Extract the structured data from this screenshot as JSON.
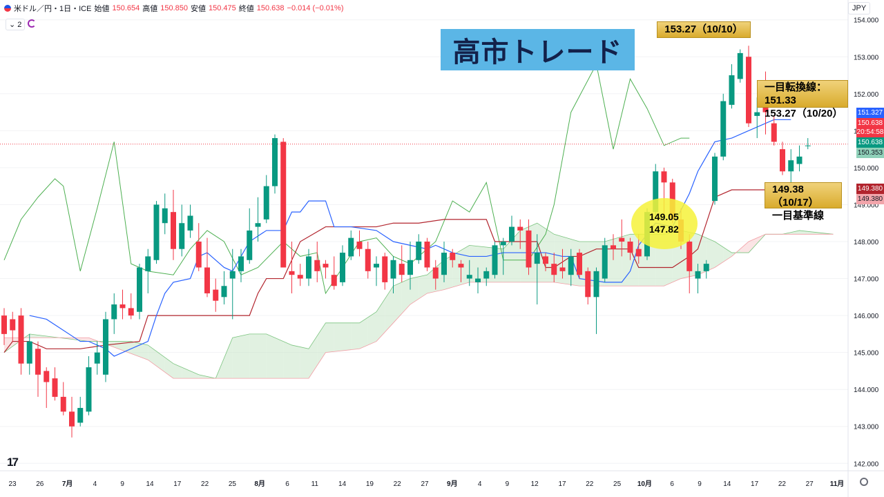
{
  "header": {
    "symbol": "米ドル／円・1日・ICE",
    "open_label": "始値",
    "open": "150.654",
    "high_label": "高値",
    "high": "150.850",
    "low_label": "安値",
    "low": "150.475",
    "close_label": "終値",
    "close": "150.638",
    "change": "−0.014 (−0.01%)",
    "indicator_count": "2",
    "currency": "JPY"
  },
  "annotations": {
    "title": "高市トレード",
    "peak": "153.27（10/10）",
    "tenkan_line1": "一目転換線：151.33",
    "tenkan_line2": "153.27（10/20）",
    "kijun_line1": "149.38（10/17）",
    "kijun_line2": "一目基準線",
    "circle_1": "149.05",
    "circle_2": "147.82"
  },
  "badges": {
    "tenkan": "151.327",
    "last": "150.638",
    "countdown": "20:54:58",
    "close": "150.638",
    "span": "150.353",
    "kijun1": "149.380",
    "kijun2": "149.380"
  },
  "colors": {
    "up": "#089981",
    "down": "#f23645",
    "tenkan": "#2962ff",
    "kijun": "#b2242d",
    "chikou": "#4caf50",
    "cloud_bull": "#c8e6c9",
    "cloud_bear": "#f8cdd0"
  },
  "chart_data": {
    "type": "candlestick",
    "y_ticks": [
      "154.000",
      "153.000",
      "152.000",
      "151.000",
      "150.000",
      "149.000",
      "148.000",
      "147.000",
      "146.000",
      "145.000",
      "144.000",
      "143.000",
      "142.000"
    ],
    "ylim": [
      141.8,
      154.2
    ],
    "x_ticks": [
      "23",
      "26",
      "7月",
      "4",
      "9",
      "14",
      "17",
      "22",
      "25",
      "8月",
      "6",
      "11",
      "14",
      "19",
      "22",
      "27",
      "9月",
      "4",
      "9",
      "12",
      "17",
      "22",
      "25",
      "10月",
      "6",
      "9",
      "14",
      "17",
      "22",
      "27",
      "11月"
    ],
    "candles": [
      [
        146.0,
        146.2,
        145.2,
        145.5
      ],
      [
        145.9,
        146.1,
        145.3,
        145.6
      ],
      [
        146.0,
        146.2,
        144.4,
        144.7
      ],
      [
        144.7,
        145.5,
        144.4,
        145.3
      ],
      [
        145.1,
        145.3,
        143.8,
        144.4
      ],
      [
        144.5,
        144.6,
        143.5,
        144.2
      ],
      [
        144.3,
        144.6,
        143.7,
        143.8
      ],
      [
        143.8,
        144.2,
        143.3,
        143.4
      ],
      [
        143.4,
        143.8,
        142.7,
        143.0
      ],
      [
        143.1,
        143.8,
        143.0,
        143.5
      ],
      [
        143.4,
        144.9,
        143.3,
        144.6
      ],
      [
        144.7,
        145.3,
        144.4,
        145.0
      ],
      [
        144.4,
        146.1,
        144.2,
        145.9
      ],
      [
        145.9,
        146.6,
        145.5,
        146.3
      ],
      [
        146.3,
        146.7,
        145.9,
        146.2
      ],
      [
        146.2,
        146.6,
        145.9,
        146.0
      ],
      [
        146.1,
        147.4,
        145.9,
        147.3
      ],
      [
        147.2,
        147.8,
        146.6,
        147.6
      ],
      [
        147.5,
        149.1,
        147.4,
        149.0
      ],
      [
        148.5,
        149.3,
        148.2,
        148.9
      ],
      [
        148.8,
        149.4,
        147.5,
        147.8
      ],
      [
        147.8,
        149.0,
        147.6,
        148.5
      ],
      [
        148.3,
        149.0,
        148.1,
        148.7
      ],
      [
        148.0,
        148.5,
        147.2,
        147.3
      ],
      [
        147.3,
        148.1,
        146.5,
        146.6
      ],
      [
        146.7,
        147.0,
        146.1,
        146.4
      ],
      [
        146.5,
        147.2,
        146.3,
        146.8
      ],
      [
        147.0,
        147.8,
        145.9,
        147.2
      ],
      [
        147.2,
        147.8,
        146.9,
        147.6
      ],
      [
        147.5,
        148.9,
        147.4,
        148.3
      ],
      [
        148.4,
        149.2,
        148.0,
        148.5
      ],
      [
        148.6,
        149.8,
        148.5,
        149.5
      ],
      [
        149.5,
        150.9,
        149.3,
        150.8
      ],
      [
        150.7,
        150.8,
        147.4,
        147.3
      ],
      [
        147.2,
        148.0,
        146.6,
        147.1
      ],
      [
        147.1,
        147.4,
        146.8,
        147.0
      ],
      [
        147.0,
        147.8,
        146.8,
        147.6
      ],
      [
        147.5,
        148.0,
        146.9,
        147.2
      ],
      [
        147.4,
        147.5,
        147.0,
        147.3
      ],
      [
        147.1,
        147.6,
        146.7,
        146.8
      ],
      [
        146.9,
        147.9,
        146.8,
        147.7
      ],
      [
        147.6,
        148.3,
        147.5,
        148.1
      ],
      [
        148.0,
        148.3,
        147.6,
        147.8
      ],
      [
        147.8,
        148.0,
        147.0,
        147.2
      ],
      [
        147.3,
        147.6,
        146.8,
        147.4
      ],
      [
        147.6,
        147.7,
        146.7,
        146.9
      ],
      [
        147.0,
        147.6,
        146.6,
        147.5
      ],
      [
        147.4,
        147.9,
        146.9,
        147.1
      ],
      [
        147.1,
        148.0,
        146.7,
        147.5
      ],
      [
        147.5,
        148.2,
        147.4,
        148.0
      ],
      [
        148.0,
        148.1,
        147.2,
        147.3
      ],
      [
        147.3,
        147.5,
        146.7,
        147.0
      ],
      [
        147.1,
        148.0,
        146.9,
        147.7
      ],
      [
        147.7,
        147.8,
        147.3,
        147.5
      ],
      [
        147.4,
        147.5,
        146.9,
        147.3
      ],
      [
        147.0,
        147.5,
        146.8,
        147.1
      ],
      [
        146.9,
        147.3,
        146.6,
        147.0
      ],
      [
        147.0,
        147.3,
        146.8,
        147.2
      ],
      [
        147.1,
        148.0,
        147.0,
        147.9
      ],
      [
        147.9,
        148.1,
        147.1,
        148.0
      ],
      [
        148.0,
        148.7,
        147.9,
        148.4
      ],
      [
        148.4,
        148.6,
        147.8,
        148.3
      ],
      [
        148.3,
        148.6,
        147.1,
        147.3
      ],
      [
        147.4,
        148.2,
        146.3,
        147.7
      ],
      [
        147.6,
        147.7,
        147.2,
        147.4
      ],
      [
        147.4,
        147.7,
        146.9,
        147.1
      ],
      [
        147.3,
        147.8,
        147.0,
        147.2
      ],
      [
        147.1,
        147.8,
        146.8,
        147.6
      ],
      [
        147.7,
        147.8,
        147.0,
        147.1
      ],
      [
        147.2,
        147.3,
        146.3,
        146.5
      ],
      [
        146.5,
        147.3,
        145.5,
        147.2
      ],
      [
        147.0,
        148.1,
        146.9,
        147.9
      ],
      [
        147.9,
        148.2,
        147.5,
        147.8
      ],
      [
        148.1,
        148.6,
        147.6,
        148.0
      ],
      [
        148.0,
        148.1,
        147.5,
        147.7
      ],
      [
        147.8,
        148.2,
        147.4,
        147.6
      ],
      [
        147.6,
        148.9,
        147.5,
        148.8
      ],
      [
        148.8,
        150.1,
        148.6,
        149.9
      ],
      [
        149.9,
        150.0,
        148.7,
        149.6
      ],
      [
        149.6,
        149.7,
        148.5,
        148.6
      ],
      [
        148.6,
        148.9,
        147.8,
        148.0
      ],
      [
        148.0,
        148.2,
        146.6,
        147.2
      ],
      [
        147.0,
        147.4,
        146.6,
        147.2
      ],
      [
        147.2,
        147.5,
        147.0,
        147.4
      ],
      [
        149.1,
        150.4,
        149.0,
        150.3
      ],
      [
        150.3,
        152.0,
        150.2,
        151.8
      ],
      [
        151.7,
        152.8,
        151.6,
        152.5
      ],
      [
        152.4,
        153.2,
        152.3,
        153.1
      ],
      [
        153.0,
        153.3,
        151.1,
        151.2
      ],
      [
        151.4,
        151.9,
        150.8,
        151.5
      ],
      [
        152.1,
        152.6,
        150.9,
        151.5
      ],
      [
        151.2,
        151.4,
        150.6,
        150.7
      ],
      [
        150.5,
        150.7,
        149.8,
        149.9
      ],
      [
        149.9,
        150.5,
        149.4,
        150.2
      ],
      [
        150.1,
        150.6,
        149.9,
        150.3
      ],
      [
        150.6,
        150.8,
        150.5,
        150.6
      ]
    ],
    "tenkan": [
      [
        3,
        146.0
      ],
      [
        5,
        145.9
      ],
      [
        9,
        145.3
      ],
      [
        10,
        145.3
      ],
      [
        12,
        145.1
      ],
      [
        13,
        144.9
      ],
      [
        14,
        145.0
      ],
      [
        17,
        145.3
      ],
      [
        18,
        146.0
      ],
      [
        19,
        146.6
      ],
      [
        20,
        146.9
      ],
      [
        22,
        147.0
      ],
      [
        23,
        147.6
      ],
      [
        24,
        147.7
      ],
      [
        26,
        147.3
      ],
      [
        27,
        147.2
      ],
      [
        29,
        148.0
      ],
      [
        31,
        148.3
      ],
      [
        33,
        148.3
      ],
      [
        34,
        148.8
      ],
      [
        35,
        148.8
      ],
      [
        36,
        149.1
      ],
      [
        38,
        149.1
      ],
      [
        39,
        148.4
      ],
      [
        41,
        148.4
      ],
      [
        44,
        148.3
      ],
      [
        46,
        148.0
      ],
      [
        48,
        147.9
      ],
      [
        50,
        147.8
      ],
      [
        51,
        147.9
      ],
      [
        53,
        147.7
      ],
      [
        55,
        147.6
      ],
      [
        57,
        147.6
      ],
      [
        59,
        147.7
      ],
      [
        60,
        147.7
      ],
      [
        62,
        147.7
      ],
      [
        64,
        147.7
      ],
      [
        66,
        147.6
      ],
      [
        67,
        147.6
      ],
      [
        68,
        147.0
      ],
      [
        71,
        146.9
      ],
      [
        73,
        146.9
      ],
      [
        74,
        147.2
      ],
      [
        75,
        147.9
      ],
      [
        77,
        148.5
      ],
      [
        79,
        148.4
      ],
      [
        81,
        149.3
      ],
      [
        82,
        149.9
      ],
      [
        84,
        150.7
      ],
      [
        86,
        150.8
      ],
      [
        88,
        151.0
      ],
      [
        90,
        151.2
      ],
      [
        91,
        151.3
      ],
      [
        93,
        151.3
      ]
    ],
    "kijun": [
      [
        0,
        145.0
      ],
      [
        1,
        145.3
      ],
      [
        3,
        145.3
      ],
      [
        5,
        145.1
      ],
      [
        9,
        145.1
      ],
      [
        12,
        145.2
      ],
      [
        16,
        145.3
      ],
      [
        17,
        146.0
      ],
      [
        18,
        146.0
      ],
      [
        26,
        146.0
      ],
      [
        29,
        146.0
      ],
      [
        30,
        146.6
      ],
      [
        31,
        147.0
      ],
      [
        33,
        147.0
      ],
      [
        35,
        148.0
      ],
      [
        38,
        148.4
      ],
      [
        39,
        148.4
      ],
      [
        44,
        148.4
      ],
      [
        46,
        148.5
      ],
      [
        49,
        148.5
      ],
      [
        52,
        148.6
      ],
      [
        53,
        148.6
      ],
      [
        57,
        148.6
      ],
      [
        58,
        148.0
      ],
      [
        63,
        148.0
      ],
      [
        64,
        147.3
      ],
      [
        65,
        147.3
      ],
      [
        67,
        147.6
      ],
      [
        68,
        147.6
      ],
      [
        70,
        147.8
      ],
      [
        74,
        147.8
      ],
      [
        75,
        147.3
      ],
      [
        79,
        147.3
      ],
      [
        81,
        147.6
      ],
      [
        82,
        147.8
      ],
      [
        84,
        149.2
      ],
      [
        86,
        149.4
      ],
      [
        90,
        149.4
      ],
      [
        93,
        149.4
      ]
    ],
    "chikou": [
      [
        0,
        147.5
      ],
      [
        2,
        148.6
      ],
      [
        4,
        149.2
      ],
      [
        6,
        149.7
      ],
      [
        7,
        149.5
      ],
      [
        9,
        147.2
      ],
      [
        11,
        148.9
      ],
      [
        13,
        150.7
      ],
      [
        15,
        147.4
      ],
      [
        17,
        147.2
      ],
      [
        20,
        147.1
      ],
      [
        22,
        147.8
      ],
      [
        24,
        148.3
      ],
      [
        26,
        148.0
      ],
      [
        28,
        147.1
      ],
      [
        30,
        147.3
      ],
      [
        33,
        148.0
      ],
      [
        35,
        147.6
      ],
      [
        37,
        147.7
      ],
      [
        38,
        146.6
      ],
      [
        40,
        147.3
      ],
      [
        42,
        148.0
      ],
      [
        44,
        148.1
      ],
      [
        46,
        147.6
      ],
      [
        48,
        147.4
      ],
      [
        51,
        148.0
      ],
      [
        53,
        149.1
      ],
      [
        55,
        148.8
      ],
      [
        57,
        149.6
      ],
      [
        59,
        147.5
      ],
      [
        62,
        147.5
      ],
      [
        64,
        148.2
      ],
      [
        65,
        149.0
      ],
      [
        67,
        151.5
      ],
      [
        70,
        152.8
      ],
      [
        72,
        150.5
      ],
      [
        74,
        152.4
      ],
      [
        76,
        151.6
      ],
      [
        78,
        150.6
      ],
      [
        80,
        150.8
      ],
      [
        81,
        150.8
      ]
    ],
    "span_a": [
      [
        0,
        145.0
      ],
      [
        3,
        145.5
      ],
      [
        10,
        145.3
      ],
      [
        15,
        145.3
      ],
      [
        17,
        145.2
      ],
      [
        20,
        144.7
      ],
      [
        23,
        144.4
      ],
      [
        25,
        144.3
      ],
      [
        27,
        145.4
      ],
      [
        29,
        145.5
      ],
      [
        31,
        145.5
      ],
      [
        34,
        145.2
      ],
      [
        36,
        145.1
      ],
      [
        38,
        145.8
      ],
      [
        42,
        145.8
      ],
      [
        44,
        146.1
      ],
      [
        46,
        146.8
      ],
      [
        48,
        147.0
      ],
      [
        50,
        147.1
      ],
      [
        52,
        147.5
      ],
      [
        55,
        147.9
      ],
      [
        59,
        147.8
      ],
      [
        61,
        148.3
      ],
      [
        63,
        148.5
      ],
      [
        65,
        148.2
      ],
      [
        68,
        148.0
      ],
      [
        71,
        148.0
      ],
      [
        74,
        148.2
      ],
      [
        78,
        148.2
      ],
      [
        80,
        148.3
      ],
      [
        82,
        148.2
      ],
      [
        84,
        148.0
      ],
      [
        86,
        147.7
      ],
      [
        88,
        147.7
      ],
      [
        90,
        148.2
      ],
      [
        92,
        148.2
      ],
      [
        94,
        148.3
      ],
      [
        98,
        148.2
      ]
    ],
    "span_b": [
      [
        0,
        145.4
      ],
      [
        3,
        145.4
      ],
      [
        10,
        145.4
      ],
      [
        17,
        144.8
      ],
      [
        20,
        144.3
      ],
      [
        23,
        144.3
      ],
      [
        25,
        144.3
      ],
      [
        27,
        144.3
      ],
      [
        29,
        144.3
      ],
      [
        31,
        144.3
      ],
      [
        34,
        144.3
      ],
      [
        36,
        144.3
      ],
      [
        38,
        145.0
      ],
      [
        42,
        145.1
      ],
      [
        44,
        145.3
      ],
      [
        46,
        145.8
      ],
      [
        48,
        146.3
      ],
      [
        50,
        146.6
      ],
      [
        52,
        146.7
      ],
      [
        55,
        146.9
      ],
      [
        59,
        146.9
      ],
      [
        61,
        146.9
      ],
      [
        63,
        146.9
      ],
      [
        65,
        146.9
      ],
      [
        68,
        146.8
      ],
      [
        71,
        146.8
      ],
      [
        74,
        146.8
      ],
      [
        78,
        146.8
      ],
      [
        80,
        147.0
      ],
      [
        82,
        147.1
      ],
      [
        84,
        147.3
      ],
      [
        86,
        147.6
      ],
      [
        88,
        148.0
      ],
      [
        90,
        148.2
      ],
      [
        92,
        148.2
      ],
      [
        94,
        148.2
      ],
      [
        98,
        148.2
      ]
    ]
  }
}
